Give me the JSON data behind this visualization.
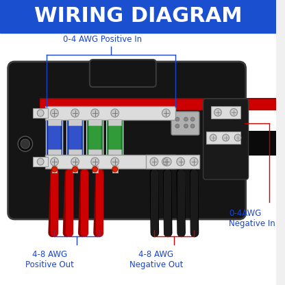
{
  "title": "WIRING DIAGRAM",
  "title_bg": "#1a50d0",
  "title_color": "#ffffff",
  "title_fontsize": 22,
  "bg_color": "#f0f0f0",
  "label_color": "#1a44cc",
  "label_fontsize": 8.5,
  "labels": {
    "pos_in": "0-4 AWG Positive In",
    "neg_in": "0-4AWG\nNegative In",
    "pos_out": "4-8 AWG\nPositive Out",
    "neg_out": "4-8 AWG\nNegative Out"
  },
  "body_color": "#151515",
  "body_color2": "#252525",
  "terminal_color": "#dcdcdc",
  "terminal_edge": "#999999",
  "fuse_blue": "#2244bb",
  "fuse_blue_light": "#4466ee",
  "fuse_green": "#228833",
  "fuse_green_light": "#44bb44",
  "led_red": "#dd2200",
  "wire_red": "#cc0000",
  "wire_black": "#1a1a1a",
  "annotation_line": "#1a44cc",
  "annotation_line_red": "#cc0000",
  "screw_face": "#c8c8c8",
  "screw_edge": "#888888"
}
